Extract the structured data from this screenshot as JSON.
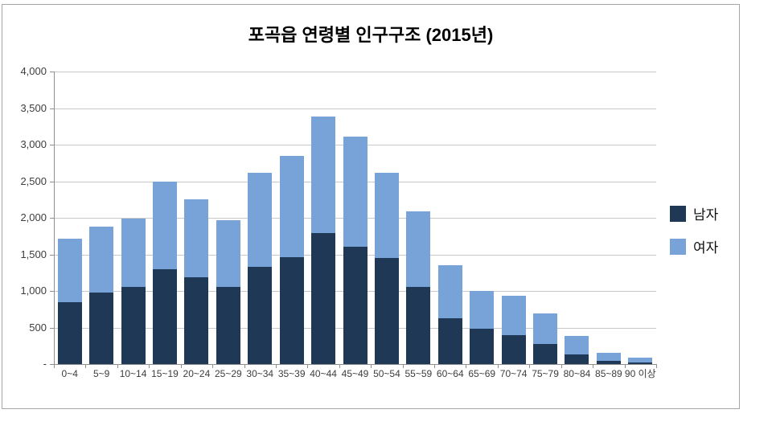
{
  "title": "포곡읍 연령별 인구구조 (2015년)",
  "colors": {
    "male": "#1f3856",
    "female": "#78a3d8",
    "gridline": "#c8c8c8",
    "axis": "#8f8f8f",
    "label_text": "#3d3d3d",
    "chart_border": "#a6a6a6",
    "background": "#ffffff"
  },
  "legend": {
    "items": [
      {
        "label": "남자",
        "color": "#1f3856"
      },
      {
        "label": "여자",
        "color": "#78a3d8"
      }
    ]
  },
  "y_axis": {
    "tick_labels": [
      "4,000",
      "3,500",
      "3,000",
      "2,500",
      "2,000",
      "1,500",
      "1,000",
      "500",
      "-"
    ],
    "max": 4000,
    "min": 0,
    "step": 500
  },
  "chart_data": {
    "type": "bar",
    "stacked": true,
    "title": "포곡읍 연령별 인구구조 (2015년)",
    "categories": [
      "0~4",
      "5~9",
      "10~14",
      "15~19",
      "20~24",
      "25~29",
      "30~34",
      "35~39",
      "40~44",
      "45~49",
      "50~54",
      "55~59",
      "60~64",
      "65~69",
      "70~74",
      "75~79",
      "80~84",
      "85~89",
      "90 이상"
    ],
    "series": [
      {
        "name": "남자",
        "color": "#1f3856",
        "values": [
          850,
          980,
          1050,
          1300,
          1190,
          1050,
          1330,
          1460,
          1790,
          1600,
          1450,
          1060,
          630,
          480,
          400,
          280,
          130,
          40,
          20
        ]
      },
      {
        "name": "여자",
        "color": "#78a3d8",
        "values": [
          870,
          900,
          940,
          1200,
          1060,
          920,
          1290,
          1390,
          1590,
          1510,
          1170,
          1030,
          720,
          520,
          530,
          410,
          260,
          115,
          70
        ]
      }
    ],
    "totals": [
      1720,
      1880,
      1990,
      2500,
      2250,
      1970,
      2620,
      2850,
      3380,
      3110,
      2620,
      2090,
      1350,
      1000,
      930,
      690,
      390,
      155,
      90
    ],
    "xlabel": "",
    "ylabel": "",
    "ylim": [
      0,
      4000
    ],
    "y_tick_step": 500,
    "grid": true,
    "legend_position": "right"
  }
}
